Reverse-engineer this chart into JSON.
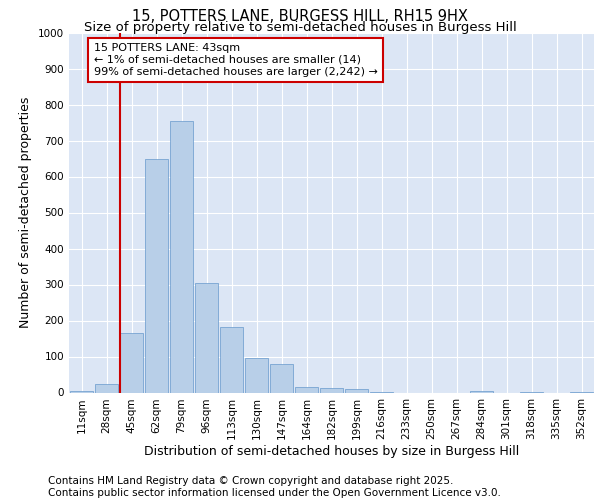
{
  "title_line1": "15, POTTERS LANE, BURGESS HILL, RH15 9HX",
  "title_line2": "Size of property relative to semi-detached houses in Burgess Hill",
  "xlabel": "Distribution of semi-detached houses by size in Burgess Hill",
  "ylabel": "Number of semi-detached properties",
  "categories": [
    "11sqm",
    "28sqm",
    "45sqm",
    "62sqm",
    "79sqm",
    "96sqm",
    "113sqm",
    "130sqm",
    "147sqm",
    "164sqm",
    "182sqm",
    "199sqm",
    "216sqm",
    "233sqm",
    "250sqm",
    "267sqm",
    "284sqm",
    "301sqm",
    "318sqm",
    "335sqm",
    "352sqm"
  ],
  "values": [
    5,
    25,
    165,
    648,
    755,
    305,
    182,
    95,
    80,
    15,
    12,
    11,
    2,
    0,
    0,
    0,
    3,
    0,
    1,
    0,
    1
  ],
  "bar_color": "#b8cfe8",
  "bar_edge_color": "#6699cc",
  "vline_color": "#cc0000",
  "annotation_text": "15 POTTERS LANE: 43sqm\n← 1% of semi-detached houses are smaller (14)\n99% of semi-detached houses are larger (2,242) →",
  "annotation_box_color": "#cc0000",
  "annotation_fill": "#ffffff",
  "ylim": [
    0,
    1000
  ],
  "yticks": [
    0,
    100,
    200,
    300,
    400,
    500,
    600,
    700,
    800,
    900,
    1000
  ],
  "background_color": "#dce6f5",
  "footer_text": "Contains HM Land Registry data © Crown copyright and database right 2025.\nContains public sector information licensed under the Open Government Licence v3.0.",
  "title_fontsize": 10.5,
  "subtitle_fontsize": 9.5,
  "label_fontsize": 9,
  "tick_fontsize": 7.5,
  "footer_fontsize": 7.5
}
